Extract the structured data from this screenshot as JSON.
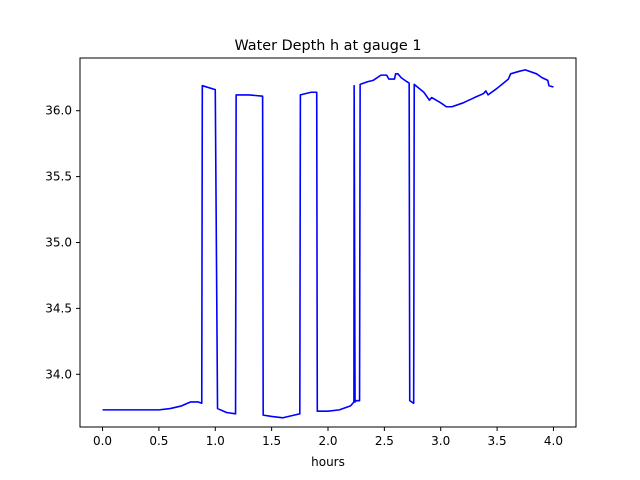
{
  "chart_data": {
    "type": "line",
    "title": "Water Depth h at gauge 1",
    "xlabel": "hours",
    "ylabel": "",
    "xlim": [
      -0.2,
      4.2
    ],
    "ylim": [
      33.6,
      36.4
    ],
    "x_ticks": [
      0.0,
      0.5,
      1.0,
      1.5,
      2.0,
      2.5,
      3.0,
      3.5,
      4.0
    ],
    "x_tick_labels": [
      "0.0",
      "0.5",
      "1.0",
      "1.5",
      "2.0",
      "2.5",
      "3.0",
      "3.5",
      "4.0"
    ],
    "y_ticks": [
      34.0,
      34.5,
      35.0,
      35.5,
      36.0
    ],
    "y_tick_labels": [
      "34.0",
      "34.5",
      "35.0",
      "35.5",
      "36.0"
    ],
    "grid": false,
    "series": [
      {
        "color": "#0000ff",
        "x": [
          0.0,
          0.3,
          0.5,
          0.6,
          0.7,
          0.78,
          0.85,
          0.88,
          0.885,
          1.0,
          1.02,
          1.1,
          1.18,
          1.185,
          1.25,
          1.3,
          1.42,
          1.425,
          1.5,
          1.6,
          1.7,
          1.75,
          1.755,
          1.85,
          1.9,
          1.905,
          2.0,
          2.1,
          2.2,
          2.23,
          2.232,
          2.24,
          2.25,
          2.28,
          2.285,
          2.35,
          2.4,
          2.47,
          2.5,
          2.52,
          2.54,
          2.59,
          2.6,
          2.62,
          2.65,
          2.7,
          2.72,
          2.725,
          2.76,
          2.765,
          2.85,
          2.9,
          2.92,
          3.0,
          3.05,
          3.1,
          3.2,
          3.3,
          3.38,
          3.4,
          3.42,
          3.5,
          3.6,
          3.62,
          3.7,
          3.75,
          3.85,
          3.9,
          3.95,
          3.96,
          4.0
        ],
        "y": [
          33.73,
          33.73,
          33.73,
          33.74,
          33.76,
          33.79,
          33.79,
          33.78,
          36.19,
          36.16,
          33.74,
          33.71,
          33.7,
          36.12,
          36.12,
          36.12,
          36.11,
          33.69,
          33.68,
          33.67,
          33.69,
          33.7,
          36.12,
          36.14,
          36.14,
          33.72,
          33.72,
          33.73,
          33.76,
          33.79,
          36.19,
          33.79,
          33.8,
          33.8,
          36.2,
          36.22,
          36.23,
          36.27,
          36.27,
          36.27,
          36.24,
          36.24,
          36.28,
          36.28,
          36.25,
          36.22,
          36.21,
          33.8,
          33.78,
          36.2,
          36.14,
          36.08,
          36.1,
          36.06,
          36.03,
          36.03,
          36.06,
          36.1,
          36.13,
          36.15,
          36.12,
          36.17,
          36.24,
          36.28,
          36.3,
          36.31,
          36.28,
          36.25,
          36.23,
          36.19,
          36.18
        ]
      }
    ]
  }
}
